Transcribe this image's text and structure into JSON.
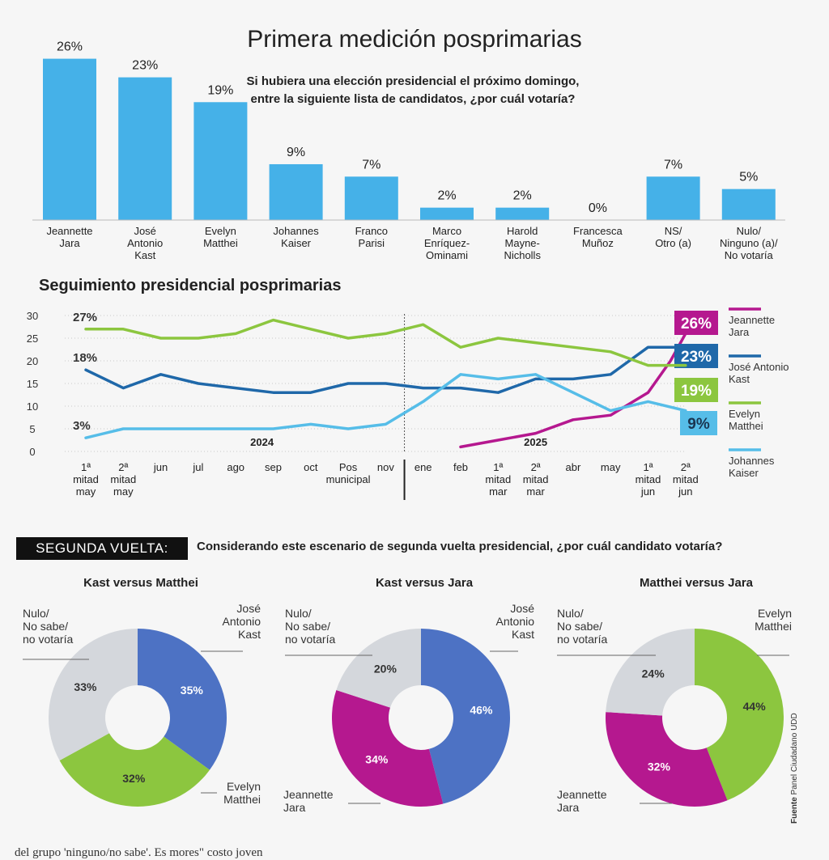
{
  "colors": {
    "jara": "#b5188f",
    "kast": "#1f68a9",
    "matthei": "#8cc63f",
    "kaiser": "#56bde8",
    "bar": "#45b1e8",
    "nulo": "#d4d7dc",
    "kast_pie": "#4d72c4"
  },
  "header": {
    "title": "Primera medición posprimarias",
    "question": "Si hubiera una elección presidencial el próximo domingo, entre la siguiente lista de candidatos, ¿por cuál votaría?"
  },
  "chart_data": [
    {
      "type": "bar",
      "categories": [
        [
          "Jeannette",
          "Jara"
        ],
        [
          "José",
          "Antonio",
          "Kast"
        ],
        [
          "Evelyn",
          "Matthei"
        ],
        [
          "Johannes",
          "Kaiser"
        ],
        [
          "Franco",
          "Parisi"
        ],
        [
          "Marco",
          "Enríquez-",
          "Ominami"
        ],
        [
          "Harold",
          "Mayne-",
          "Nicholls"
        ],
        [
          "Francesca",
          "Muñoz"
        ],
        [
          "NS/",
          "Otro (a)"
        ],
        [
          "Nulo/",
          "Ninguno (a)/",
          "No votaría"
        ]
      ],
      "values": [
        26,
        23,
        19,
        9,
        7,
        2,
        2,
        0,
        7,
        5
      ],
      "value_labels": [
        "26%",
        "23%",
        "19%",
        "9%",
        "7%",
        "2%",
        "2%",
        "0%",
        "7%",
        "5%"
      ],
      "ylim": [
        0,
        26
      ]
    },
    {
      "type": "line",
      "title": "Seguimiento presidencial posprimarias",
      "x_labels": [
        [
          "1ª",
          "mitad",
          "may"
        ],
        [
          "2ª",
          "mitad",
          "may"
        ],
        [
          "jun"
        ],
        [
          "jul"
        ],
        [
          "ago"
        ],
        [
          "sep"
        ],
        [
          "oct"
        ],
        [
          "Pos",
          "municipal"
        ],
        [
          "nov"
        ],
        [
          "ene"
        ],
        [
          "feb"
        ],
        [
          "1ª",
          "mitad",
          "mar"
        ],
        [
          "2ª",
          "mitad",
          "mar"
        ],
        [
          "abr"
        ],
        [
          "may"
        ],
        [
          "1ª",
          "mitad",
          "jun"
        ],
        [
          "2ª",
          "mitad",
          "jun"
        ]
      ],
      "year_labels": [
        {
          "label": "2024",
          "at": 4.7
        },
        {
          "label": "2025",
          "at": 12.0
        }
      ],
      "divider_at": 8.5,
      "y_ticks": [
        "0",
        "5",
        "10",
        "15",
        "20",
        "25",
        "30"
      ],
      "ylim": [
        0,
        30
      ],
      "series": [
        {
          "name": "Jeannette Jara",
          "legend": [
            "Jeannette",
            "Jara"
          ],
          "color": "#b5188f",
          "final_label": "26%",
          "final_value": 26,
          "x": [
            10,
            11,
            12,
            13,
            14,
            15,
            15.6,
            16
          ],
          "values": [
            1,
            2.5,
            4,
            7,
            8,
            13,
            20,
            26
          ]
        },
        {
          "name": "José Antonio Kast",
          "legend": [
            "José Antonio",
            "Kast"
          ],
          "color": "#1f68a9",
          "start_label": "18%",
          "final_label": "23%",
          "final_value": 23,
          "x": [
            0,
            1,
            2,
            3,
            4,
            5,
            6,
            7,
            8,
            9,
            10,
            11,
            12,
            13,
            14,
            15,
            16
          ],
          "values": [
            18,
            14,
            17,
            15,
            14,
            13,
            13,
            15,
            15,
            14,
            14,
            13,
            16,
            16,
            17,
            23,
            23
          ]
        },
        {
          "name": "Evelyn Matthei",
          "legend": [
            "Evelyn",
            "Matthei"
          ],
          "color": "#8cc63f",
          "start_label": "27%",
          "final_label": "19%",
          "final_value": 19,
          "x": [
            0,
            1,
            2,
            3,
            4,
            5,
            6,
            7,
            8,
            9,
            10,
            11,
            12,
            13,
            14,
            15,
            16
          ],
          "values": [
            27,
            27,
            25,
            25,
            26,
            29,
            27,
            25,
            26,
            28,
            23,
            25,
            24,
            23,
            22,
            19,
            19
          ]
        },
        {
          "name": "Johannes Kaiser",
          "legend": [
            "Johannes",
            "Kaiser"
          ],
          "color": "#56bde8",
          "start_label": "3%",
          "final_label": "9%",
          "final_value": 9,
          "x": [
            0,
            1,
            2,
            3,
            4,
            5,
            6,
            7,
            8,
            9,
            10,
            11,
            12,
            13,
            14,
            15,
            16
          ],
          "values": [
            3,
            5,
            5,
            5,
            5,
            5,
            6,
            5,
            6,
            11,
            17,
            16,
            17,
            13,
            9,
            11,
            9
          ]
        }
      ]
    },
    {
      "type": "pie",
      "title": "Kast versus Matthei",
      "slices": [
        {
          "label": [
            "José",
            "Antonio",
            "Kast"
          ],
          "value": 35,
          "text": "35%",
          "color": "#4d72c4"
        },
        {
          "label": [
            "Evelyn",
            "Matthei"
          ],
          "value": 32,
          "text": "32%",
          "color": "#8cc63f"
        },
        {
          "label": [
            "Nulo/",
            "No sabe/",
            "no votaría"
          ],
          "value": 33,
          "text": "33%",
          "color": "#d4d7dc"
        }
      ]
    },
    {
      "type": "pie",
      "title": "Kast versus Jara",
      "slices": [
        {
          "label": [
            "José",
            "Antonio",
            "Kast"
          ],
          "value": 46,
          "text": "46%",
          "color": "#4d72c4"
        },
        {
          "label": [
            "Jeannette",
            "Jara"
          ],
          "value": 34,
          "text": "34%",
          "color": "#b5188f"
        },
        {
          "label": [
            "Nulo/",
            "No sabe/",
            "no votaría"
          ],
          "value": 20,
          "text": "20%",
          "color": "#d4d7dc"
        }
      ]
    },
    {
      "type": "pie",
      "title": "Matthei versus Jara",
      "slices": [
        {
          "label": [
            "Evelyn",
            "Matthei"
          ],
          "value": 44,
          "text": "44%",
          "color": "#8cc63f"
        },
        {
          "label": [
            "Jeannette",
            "Jara"
          ],
          "value": 32,
          "text": "32%",
          "color": "#b5188f"
        },
        {
          "label": [
            "Nulo/",
            "No sabe/",
            "no votaría"
          ],
          "value": 24,
          "text": "24%",
          "color": "#d4d7dc"
        }
      ]
    }
  ],
  "second_round": {
    "label": "SEGUNDA VUELTA:",
    "question": "Considerando este escenario de segunda vuelta presidencial, ¿por cuál candidato votaría?"
  },
  "source": {
    "bold": "Fuente",
    "text": "Panel Ciudadano UDD"
  },
  "footer": {
    "text": "del grupo 'ninguno/no sabe'. Es    mores\"                                              costo joven"
  }
}
